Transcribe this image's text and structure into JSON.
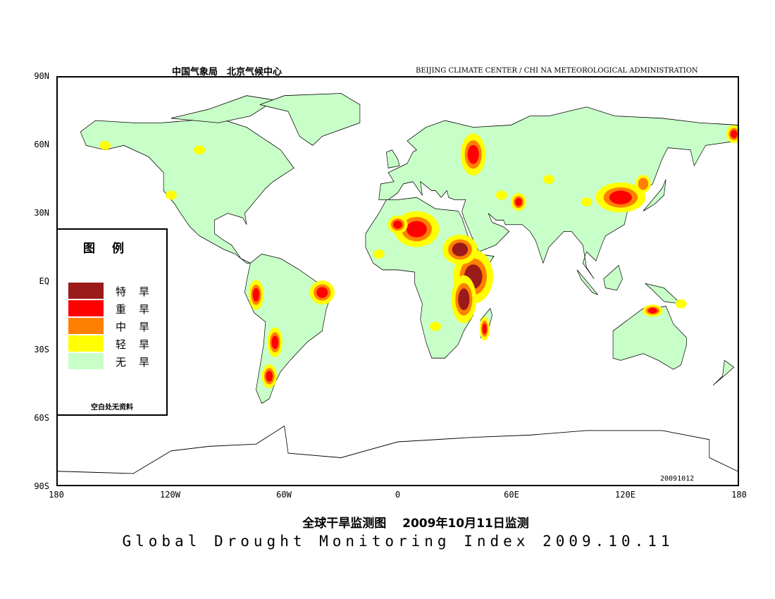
{
  "header": {
    "cn": "中国气象局　北京气候中心",
    "en": "BEIJING CLIMATE CENTER / CHI NA METEOROLOGICAL ADMINISTRATION"
  },
  "axes": {
    "lat_labels": [
      "90N",
      "60N",
      "30N",
      "EQ",
      "30S",
      "60S",
      "90S"
    ],
    "lon_labels": [
      "180",
      "120W",
      "60W",
      "0",
      "60E",
      "120E",
      "180"
    ]
  },
  "legend": {
    "title": "图例",
    "items": [
      {
        "label": "特旱",
        "color": "#9b1a1a"
      },
      {
        "label": "重旱",
        "color": "#ff0000"
      },
      {
        "label": "中旱",
        "color": "#ff8000"
      },
      {
        "label": "轻旱",
        "color": "#ffff00"
      },
      {
        "label": "无旱",
        "color": "#c8ffc8"
      }
    ],
    "note": "空白处无资料"
  },
  "date_stamp": "20091012",
  "title_cn": "全球干旱监测图　 2009年10月11日监测",
  "title_en": "Global Drought Monitoring Index  2009.10.11"
}
